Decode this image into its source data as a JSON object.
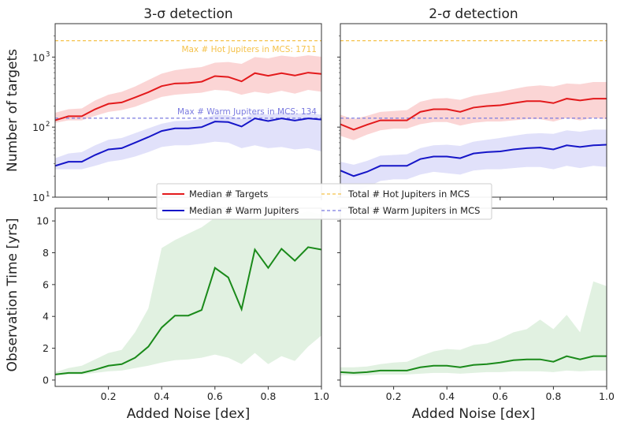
{
  "chart_data": {
    "type": "line",
    "panel_titles": [
      "3-σ detection",
      "2-σ detection"
    ],
    "xlabel": "Added Noise [dex]",
    "xlim": [
      0,
      1.0
    ],
    "x_ticks": [
      0.2,
      0.4,
      0.6,
      0.8,
      1.0
    ],
    "x_tick_labels": [
      "0.2",
      "0.4",
      "0.6",
      "0.8",
      "1.0"
    ],
    "x": [
      0.0,
      0.05,
      0.1,
      0.15,
      0.2,
      0.25,
      0.3,
      0.35,
      0.4,
      0.45,
      0.5,
      0.55,
      0.6,
      0.65,
      0.7,
      0.75,
      0.8,
      0.85,
      0.9,
      0.95,
      1.0
    ],
    "top_ylabel": "Number of targets",
    "top_yscale": "log",
    "top_ylim": [
      10,
      3000
    ],
    "top_y_ticks": [
      10,
      100,
      1000
    ],
    "top_y_tick_labels": [
      "10",
      "10",
      "10"
    ],
    "top_y_tick_exps": [
      "1",
      "2",
      "3"
    ],
    "bottom_ylabel": "Observation Time [yrs]",
    "bottom_ylim": [
      -0.4,
      10.8
    ],
    "bottom_y_ticks": [
      0,
      2,
      4,
      6,
      8,
      10
    ],
    "bottom_y_tick_labels": [
      "0",
      "2",
      "4",
      "6",
      "8",
      "10"
    ],
    "reference_lines": {
      "hot": {
        "value": 1711,
        "label": "Max # Hot Jupiters in MCS: 1711",
        "color": "#f5c24a"
      },
      "warm": {
        "value": 134,
        "label": "Max # Warm Jupiters in MCS: 134",
        "color": "#7b7be0"
      }
    },
    "legend": {
      "items": [
        {
          "label": "Median # Targets",
          "color": "#e31a1c",
          "style": "solid"
        },
        {
          "label": "Total # Hot Jupiters in MCS",
          "color": "#f5c24a",
          "style": "dashed"
        },
        {
          "label": "Median # Warm Jupiters",
          "color": "#1515c8",
          "style": "solid"
        },
        {
          "label": "Total # Warm Jupiters in MCS",
          "color": "#7b7be0",
          "style": "dashed"
        }
      ]
    },
    "panels": [
      {
        "name": "3-sigma-targets",
        "series": [
          {
            "name": "Median # Targets",
            "color": "#e31a1c",
            "band_color": "#f7b3b3",
            "values": [
              125,
              143,
              143,
              180,
              215,
              225,
              265,
              315,
              385,
              420,
              425,
              445,
              535,
              520,
              450,
              590,
              540,
              590,
              545,
              600,
              575
            ],
            "lower": [
              115,
              125,
              125,
              145,
              165,
              175,
              195,
              230,
              270,
              290,
              300,
              310,
              340,
              330,
              290,
              320,
              300,
              330,
              300,
              340,
              320
            ],
            "upper": [
              160,
              180,
              185,
              240,
              290,
              320,
              380,
              470,
              580,
              650,
              690,
              720,
              830,
              850,
              800,
              1000,
              960,
              1050,
              1000,
              1060,
              1010
            ]
          },
          {
            "name": "Median # Warm Jupiters",
            "color": "#1515c8",
            "band_color": "#c8c8f5",
            "values": [
              28,
              32,
              32,
              40,
              48,
              50,
              60,
              72,
              88,
              96,
              96,
              100,
              120,
              118,
              102,
              133,
              122,
              133,
              124,
              133,
              128
            ],
            "lower": [
              25,
              25,
              25,
              28,
              32,
              34,
              38,
              44,
              52,
              55,
              55,
              58,
              62,
              60,
              50,
              55,
              50,
              52,
              48,
              50,
              45
            ],
            "upper": [
              36,
              42,
              44,
              55,
              66,
              70,
              82,
              96,
              112,
              122,
              124,
              130,
              150,
              148,
              130,
              160,
              150,
              165,
              155,
              160,
              150
            ]
          }
        ]
      },
      {
        "name": "2-sigma-targets",
        "series": [
          {
            "name": "Median # Targets",
            "color": "#e31a1c",
            "band_color": "#f7b3b3",
            "values": [
              110,
              92,
              108,
              125,
              125,
              125,
              165,
              180,
              180,
              165,
              190,
              200,
              205,
              220,
              235,
              235,
              220,
              255,
              240,
              255,
              255
            ],
            "lower": [
              75,
              65,
              78,
              90,
              95,
              95,
              110,
              118,
              118,
              105,
              115,
              120,
              120,
              125,
              130,
              130,
              120,
              135,
              125,
              135,
              130
            ],
            "upper": [
              150,
              130,
              145,
              165,
              170,
              175,
              230,
              255,
              260,
              245,
              280,
              300,
              320,
              350,
              380,
              395,
              380,
              420,
              410,
              440,
              440
            ]
          },
          {
            "name": "Median # Warm Jupiters",
            "color": "#1515c8",
            "band_color": "#c8c8f5",
            "values": [
              24,
              20,
              23,
              28,
              28,
              28,
              35,
              38,
              38,
              36,
              42,
              44,
              45,
              48,
              50,
              51,
              48,
              55,
              52,
              55,
              56
            ],
            "lower": [
              15,
              12,
              14,
              17,
              18,
              18,
              21,
              23,
              22,
              21,
              24,
              25,
              25,
              26,
              27,
              27,
              25,
              28,
              26,
              28,
              27
            ],
            "upper": [
              32,
              29,
              33,
              39,
              40,
              41,
              50,
              55,
              56,
              54,
              62,
              66,
              70,
              75,
              80,
              82,
              80,
              90,
              86,
              92,
              92
            ]
          }
        ]
      },
      {
        "name": "3-sigma-time",
        "series": [
          {
            "name": "Observation Time",
            "color": "#1a8a1a",
            "band_color": "#c9e6c9",
            "values": [
              0.35,
              0.45,
              0.45,
              0.65,
              0.9,
              1.0,
              1.4,
              2.1,
              3.3,
              4.05,
              4.05,
              4.4,
              7.05,
              6.45,
              4.45,
              8.2,
              7.05,
              8.25,
              7.5,
              8.35,
              8.2
            ],
            "lower": [
              0.3,
              0.35,
              0.35,
              0.45,
              0.55,
              0.6,
              0.75,
              0.9,
              1.1,
              1.25,
              1.3,
              1.4,
              1.6,
              1.4,
              1.0,
              1.7,
              1.0,
              1.5,
              1.2,
              2.1,
              2.8
            ],
            "upper": [
              0.5,
              0.75,
              0.9,
              1.3,
              1.7,
              1.9,
              3.0,
              4.5,
              8.3,
              8.8,
              9.2,
              9.6,
              10.2,
              10.4,
              10.1,
              10.4,
              10.5,
              10.2,
              10.4,
              10.6,
              10.4
            ]
          }
        ]
      },
      {
        "name": "2-sigma-time",
        "series": [
          {
            "name": "Observation Time",
            "color": "#1a8a1a",
            "band_color": "#c9e6c9",
            "values": [
              0.5,
              0.45,
              0.5,
              0.6,
              0.6,
              0.6,
              0.8,
              0.9,
              0.9,
              0.8,
              0.95,
              1.0,
              1.1,
              1.25,
              1.3,
              1.3,
              1.15,
              1.5,
              1.3,
              1.5,
              1.5
            ],
            "lower": [
              0.3,
              0.3,
              0.3,
              0.35,
              0.35,
              0.35,
              0.4,
              0.45,
              0.45,
              0.4,
              0.45,
              0.5,
              0.5,
              0.55,
              0.55,
              0.55,
              0.5,
              0.6,
              0.55,
              0.6,
              0.6
            ],
            "upper": [
              0.8,
              0.8,
              0.85,
              1.0,
              1.1,
              1.15,
              1.5,
              1.8,
              1.95,
              1.9,
              2.2,
              2.3,
              2.6,
              3.0,
              3.2,
              3.8,
              3.2,
              4.1,
              3.0,
              6.2,
              5.9
            ]
          }
        ]
      }
    ]
  }
}
